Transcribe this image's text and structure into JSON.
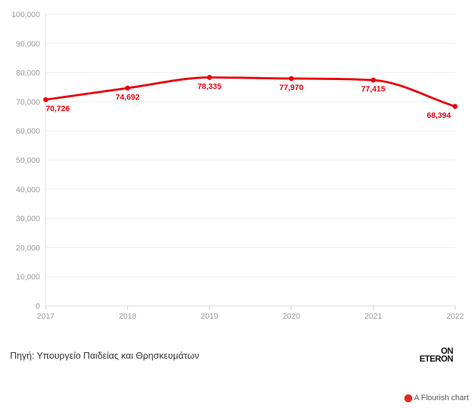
{
  "chart_data": {
    "type": "line",
    "title": "",
    "xlabel": "",
    "ylabel": "",
    "categories": [
      "2017",
      "2018",
      "2019",
      "2020",
      "2021",
      "2022"
    ],
    "series": [
      {
        "name": "",
        "values": [
          70726,
          74692,
          78335,
          77970,
          77415,
          68394
        ],
        "labels": [
          "70,726",
          "74,692",
          "78,335",
          "77,970",
          "77,415",
          "68,394"
        ],
        "color": "#e8000b"
      }
    ],
    "ylim": [
      0,
      100000
    ],
    "yticks": [
      0,
      10000,
      20000,
      30000,
      40000,
      50000,
      60000,
      70000,
      80000,
      90000,
      100000
    ],
    "ytick_labels": [
      "0",
      "10,000",
      "20,000",
      "30,000",
      "40,000",
      "50,000",
      "60,000",
      "70,000",
      "80,000",
      "90,000",
      "100,000"
    ],
    "grid": true
  },
  "footer": {
    "source": "Πηγή: Υπουργείο Παιδείας και Θρησκευμάτων",
    "logo_top": "ON",
    "logo_bottom": "ETERON",
    "credit": "A Flourish chart"
  },
  "colors": {
    "line": "#e8000b",
    "grid": "#eeeeee",
    "axis_text": "#9a9a9a"
  }
}
